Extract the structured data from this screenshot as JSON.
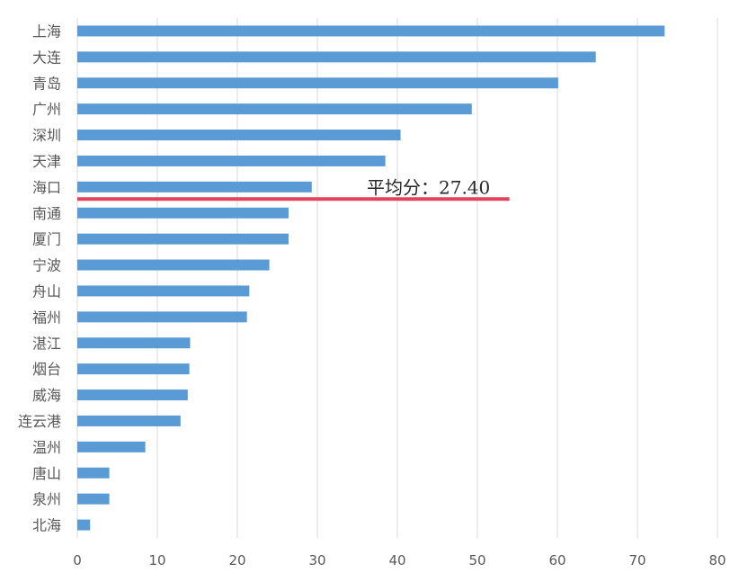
{
  "chart_data": {
    "type": "bar",
    "orientation": "horizontal",
    "categories": [
      "上海",
      "大连",
      "青岛",
      "广州",
      "深圳",
      "天津",
      "海口",
      "南通",
      "厦门",
      "宁波",
      "舟山",
      "福州",
      "湛江",
      "烟台",
      "威海",
      "连云港",
      "温州",
      "唐山",
      "泉州",
      "北海"
    ],
    "values": [
      73.4,
      64.8,
      60.1,
      49.3,
      40.4,
      38.5,
      29.3,
      26.4,
      26.4,
      24.0,
      21.5,
      21.2,
      14.1,
      14.0,
      13.8,
      12.9,
      8.5,
      4.0,
      4.0,
      1.6
    ],
    "xlim": [
      0,
      80
    ],
    "x_ticks": [
      "0",
      "10",
      "20",
      "30",
      "40",
      "50",
      "60",
      "70",
      "80"
    ],
    "grid": true,
    "bar_color": "#5B9BD5",
    "average": {
      "label": "平均分：27.40",
      "value": 27.4,
      "line_extent": [
        0,
        54
      ],
      "color": "#E0435B"
    }
  }
}
